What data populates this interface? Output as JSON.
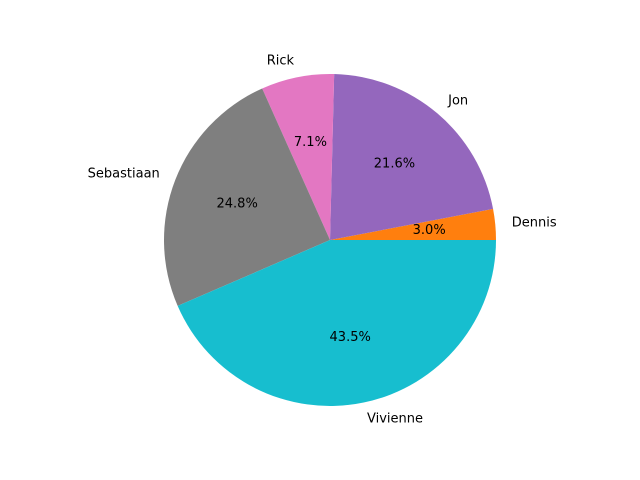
{
  "chart_data": {
    "type": "pie",
    "title": "",
    "start_angle_deg": 0,
    "direction": "counterclockwise",
    "slices": [
      {
        "label": "Dennis",
        "value": 3.0,
        "pct_text": "3.0%",
        "color": "#ff7f0e"
      },
      {
        "label": "Jon",
        "value": 21.6,
        "pct_text": "21.6%",
        "color": "#9467bd"
      },
      {
        "label": "Rick",
        "value": 7.1,
        "pct_text": "7.1%",
        "color": "#e377c2"
      },
      {
        "label": "Sebastiaan",
        "value": 24.8,
        "pct_text": "24.8%",
        "color": "#7f7f7f"
      },
      {
        "label": "Vivienne",
        "value": 43.5,
        "pct_text": "43.5%",
        "color": "#17becf"
      }
    ]
  }
}
